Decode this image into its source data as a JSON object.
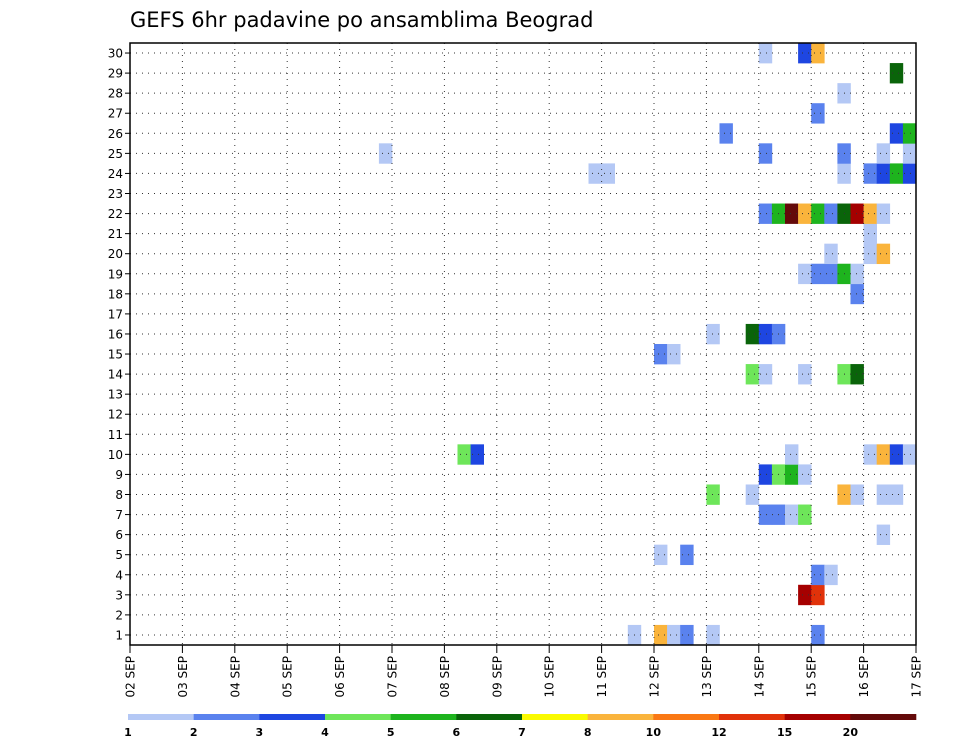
{
  "chart_data": {
    "type": "heatmap",
    "title": "GEFS 6hr padavine po ansamblima Beograd",
    "x_tick_labels": [
      "02 SEP",
      "03 SEP",
      "04 SEP",
      "05 SEP",
      "06 SEP",
      "07 SEP",
      "08 SEP",
      "09 SEP",
      "10 SEP",
      "11 SEP",
      "12 SEP",
      "13 SEP",
      "14 SEP",
      "15 SEP",
      "16 SEP",
      "17 SEP"
    ],
    "y_tick_labels": [
      "1",
      "2",
      "3",
      "4",
      "5",
      "6",
      "7",
      "8",
      "9",
      "10",
      "11",
      "12",
      "13",
      "14",
      "15",
      "16",
      "17",
      "18",
      "19",
      "20",
      "21",
      "22",
      "23",
      "24",
      "25",
      "26",
      "27",
      "28",
      "29",
      "30"
    ],
    "xlim_days": [
      0,
      15
    ],
    "steps_per_day": 4,
    "ylim_members": [
      0.5,
      30.5
    ],
    "grid": "dotted",
    "colorbar": {
      "labels": [
        "1",
        "2",
        "3",
        "4",
        "5",
        "6",
        "7",
        "8",
        "10",
        "12",
        "15",
        "20"
      ],
      "colors": [
        "#b4c8f5",
        "#5a82ee",
        "#1e46e1",
        "#6ee65a",
        "#1eb41e",
        "#0a640a",
        "#fafa00",
        "#fab43c",
        "#fa7814",
        "#e1320a",
        "#a50000",
        "#640a0a"
      ]
    },
    "cells": [
      {
        "member": 1,
        "step": 38,
        "level": 1
      },
      {
        "member": 1,
        "step": 40,
        "level": 8
      },
      {
        "member": 1,
        "step": 41,
        "level": 1
      },
      {
        "member": 1,
        "step": 42,
        "level": 2
      },
      {
        "member": 1,
        "step": 44,
        "level": 1
      },
      {
        "member": 1,
        "step": 52,
        "level": 2
      },
      {
        "member": 3,
        "step": 51,
        "level": 11
      },
      {
        "member": 3,
        "step": 52,
        "level": 10
      },
      {
        "member": 4,
        "step": 52,
        "level": 2
      },
      {
        "member": 4,
        "step": 53,
        "level": 1
      },
      {
        "member": 5,
        "step": 40,
        "level": 1
      },
      {
        "member": 5,
        "step": 42,
        "level": 2
      },
      {
        "member": 6,
        "step": 57,
        "level": 1
      },
      {
        "member": 7,
        "step": 48,
        "level": 2
      },
      {
        "member": 7,
        "step": 49,
        "level": 2
      },
      {
        "member": 7,
        "step": 50,
        "level": 1
      },
      {
        "member": 7,
        "step": 51,
        "level": 4
      },
      {
        "member": 8,
        "step": 44,
        "level": 4
      },
      {
        "member": 8,
        "step": 47,
        "level": 1
      },
      {
        "member": 8,
        "step": 54,
        "level": 8
      },
      {
        "member": 8,
        "step": 55,
        "level": 1
      },
      {
        "member": 8,
        "step": 57,
        "level": 1
      },
      {
        "member": 8,
        "step": 58,
        "level": 1
      },
      {
        "member": 9,
        "step": 48,
        "level": 3
      },
      {
        "member": 9,
        "step": 49,
        "level": 4
      },
      {
        "member": 9,
        "step": 50,
        "level": 5
      },
      {
        "member": 9,
        "step": 51,
        "level": 1
      },
      {
        "member": 10,
        "step": 25,
        "level": 4
      },
      {
        "member": 10,
        "step": 26,
        "level": 3
      },
      {
        "member": 10,
        "step": 50,
        "level": 1
      },
      {
        "member": 10,
        "step": 56,
        "level": 1
      },
      {
        "member": 10,
        "step": 57,
        "level": 8
      },
      {
        "member": 10,
        "step": 58,
        "level": 3
      },
      {
        "member": 10,
        "step": 59,
        "level": 1
      },
      {
        "member": 14,
        "step": 47,
        "level": 4
      },
      {
        "member": 14,
        "step": 48,
        "level": 1
      },
      {
        "member": 14,
        "step": 51,
        "level": 1
      },
      {
        "member": 14,
        "step": 54,
        "level": 4
      },
      {
        "member": 14,
        "step": 55,
        "level": 6
      },
      {
        "member": 15,
        "step": 40,
        "level": 2
      },
      {
        "member": 15,
        "step": 41,
        "level": 1
      },
      {
        "member": 16,
        "step": 44,
        "level": 1
      },
      {
        "member": 16,
        "step": 47,
        "level": 6
      },
      {
        "member": 16,
        "step": 48,
        "level": 3
      },
      {
        "member": 16,
        "step": 49,
        "level": 2
      },
      {
        "member": 18,
        "step": 55,
        "level": 2
      },
      {
        "member": 19,
        "step": 51,
        "level": 1
      },
      {
        "member": 19,
        "step": 52,
        "level": 2
      },
      {
        "member": 19,
        "step": 53,
        "level": 2
      },
      {
        "member": 19,
        "step": 54,
        "level": 5
      },
      {
        "member": 19,
        "step": 55,
        "level": 1
      },
      {
        "member": 20,
        "step": 53,
        "level": 1
      },
      {
        "member": 20,
        "step": 56,
        "level": 1
      },
      {
        "member": 20,
        "step": 57,
        "level": 8
      },
      {
        "member": 21,
        "step": 56,
        "level": 1
      },
      {
        "member": 22,
        "step": 48,
        "level": 2
      },
      {
        "member": 22,
        "step": 49,
        "level": 5
      },
      {
        "member": 22,
        "step": 50,
        "level": 12
      },
      {
        "member": 22,
        "step": 51,
        "level": 8
      },
      {
        "member": 22,
        "step": 52,
        "level": 5
      },
      {
        "member": 22,
        "step": 53,
        "level": 2
      },
      {
        "member": 22,
        "step": 54,
        "level": 6
      },
      {
        "member": 22,
        "step": 55,
        "level": 11
      },
      {
        "member": 22,
        "step": 56,
        "level": 8
      },
      {
        "member": 22,
        "step": 57,
        "level": 1
      },
      {
        "member": 24,
        "step": 35,
        "level": 1
      },
      {
        "member": 24,
        "step": 36,
        "level": 1
      },
      {
        "member": 24,
        "step": 54,
        "level": 1
      },
      {
        "member": 24,
        "step": 56,
        "level": 2
      },
      {
        "member": 24,
        "step": 57,
        "level": 3
      },
      {
        "member": 24,
        "step": 58,
        "level": 5
      },
      {
        "member": 24,
        "step": 59,
        "level": 3
      },
      {
        "member": 25,
        "step": 19,
        "level": 1
      },
      {
        "member": 25,
        "step": 48,
        "level": 2
      },
      {
        "member": 25,
        "step": 54,
        "level": 2
      },
      {
        "member": 25,
        "step": 57,
        "level": 1
      },
      {
        "member": 25,
        "step": 59,
        "level": 1
      },
      {
        "member": 26,
        "step": 45,
        "level": 2
      },
      {
        "member": 26,
        "step": 58,
        "level": 3
      },
      {
        "member": 26,
        "step": 59,
        "level": 5
      },
      {
        "member": 27,
        "step": 52,
        "level": 2
      },
      {
        "member": 28,
        "step": 54,
        "level": 1
      },
      {
        "member": 29,
        "step": 58,
        "level": 6
      },
      {
        "member": 30,
        "step": 48,
        "level": 1
      },
      {
        "member": 30,
        "step": 51,
        "level": 3
      },
      {
        "member": 30,
        "step": 52,
        "level": 8
      }
    ]
  }
}
